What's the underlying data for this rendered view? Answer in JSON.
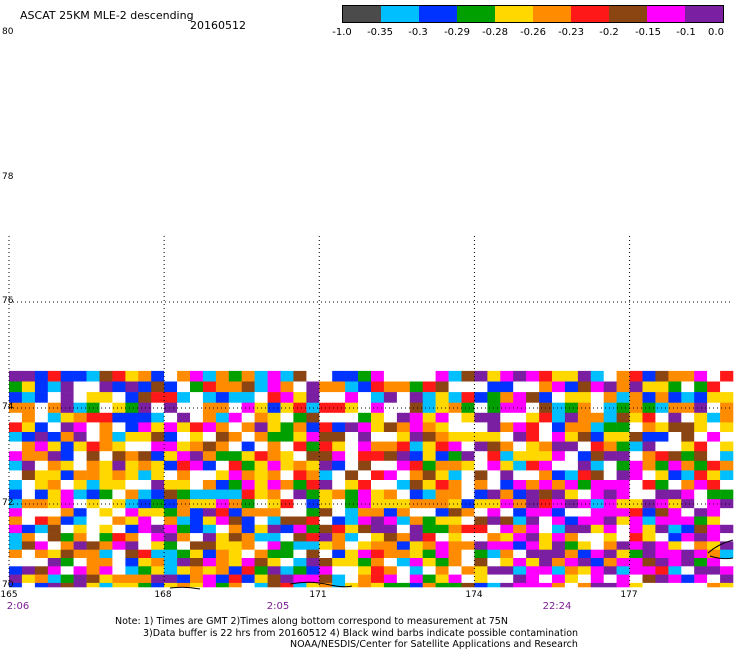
{
  "header": {
    "title": "ASCAT 25KM MLE-2 descending",
    "date": "20160512"
  },
  "colorbar": {
    "colors": [
      "#4b4b4b",
      "#00bfff",
      "#0033ff",
      "#00a000",
      "#ffd800",
      "#ff8c00",
      "#ff1818",
      "#8b4513",
      "#ff00ff",
      "#7a1fa2"
    ],
    "labels": [
      "-1.0",
      "-0.35",
      "-0.3",
      "-0.29",
      "-0.28",
      "-0.26",
      "-0.23",
      "-0.2",
      "-0.15",
      "-0.1",
      "0.0"
    ]
  },
  "axes": {
    "y_labels": [
      "80",
      "78",
      "76",
      "74",
      "72",
      "70"
    ],
    "x_labels": [
      "165",
      "168",
      "171",
      "174",
      "177"
    ],
    "time_labels": [
      "2:06",
      "2:05",
      "22:24"
    ]
  },
  "map": {
    "lon_range": [
      165,
      179
    ],
    "lat_range": [
      70,
      80
    ],
    "data_lat_top": 74.7,
    "cell_deg_lon": 0.25,
    "cell_deg_lat": 0.2,
    "palette": [
      "#ffd800",
      "#ff8c00",
      "#ff1818",
      "#ffffff",
      "#00a000",
      "#ff00ff",
      "#8b4513",
      "#7a1fa2",
      "#0033ff",
      "#00bfff",
      "#ffd800",
      "#ff8c00"
    ]
  },
  "notes": [
    "Note: 1) Times are GMT 2)Times along bottom correspond to measurement at 75N",
    "3)Data buffer is 22 hrs from 20160512 4) Black wind barbs indicate possible contamination",
    "NOAA/NESDIS/Center for Satellite Applications and Research"
  ]
}
